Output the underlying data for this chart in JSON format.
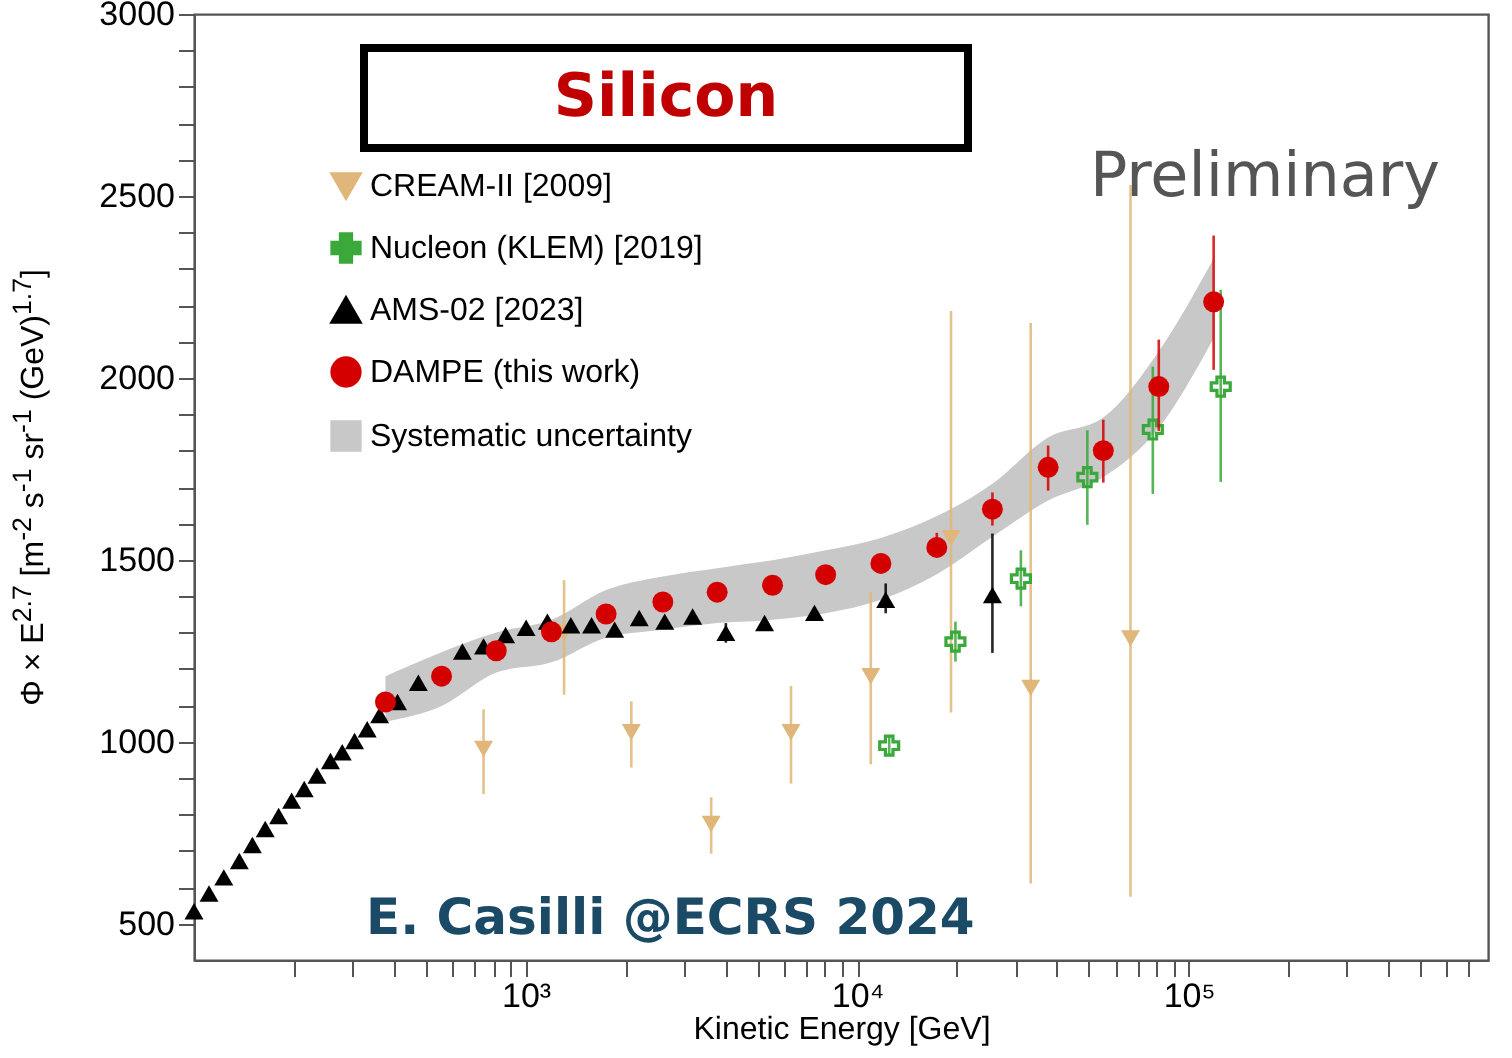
{
  "chart_data": {
    "type": "scatter",
    "title": "Silicon",
    "xlabel": "Kinetic Energy [GeV]",
    "ylabel": "Φ × E$^{2.7}$ [m$^{-2}$ s$^{-1}$ sr$^{-1}$ (GeV)$^{1.7}$]",
    "annotations": [
      "Preliminary",
      "E. Casilli @ECRS 2024",
      "Systematic uncertainty"
    ],
    "log": "x",
    "grid": false,
    "legend": "top left",
    "xlim": [
      100,
      800000
    ],
    "ylim": [
      400,
      3000
    ],
    "xticks": [
      {
        "value": 200,
        "label": null
      },
      {
        "value": 300,
        "label": null
      },
      {
        "value": 400,
        "label": null
      },
      {
        "value": 500,
        "label": null
      },
      {
        "value": 600,
        "label": null
      },
      {
        "value": 700,
        "label": null
      },
      {
        "value": 800,
        "label": null
      },
      {
        "value": 900,
        "label": null
      },
      {
        "value": 1000,
        "label": "10³"
      },
      {
        "value": 2000,
        "label": null
      },
      {
        "value": 3000,
        "label": null
      },
      {
        "value": 4000,
        "label": null
      },
      {
        "value": 5000,
        "label": null
      },
      {
        "value": 6000,
        "label": null
      },
      {
        "value": 7000,
        "label": null
      },
      {
        "value": 8000,
        "label": null
      },
      {
        "value": 9000,
        "label": null
      },
      {
        "value": 10000,
        "label": "10⁴"
      },
      {
        "value": 20000,
        "label": null
      },
      {
        "value": 30000,
        "label": null
      },
      {
        "value": 40000,
        "label": null
      },
      {
        "value": 50000,
        "label": null
      },
      {
        "value": 60000,
        "label": null
      },
      {
        "value": 70000,
        "label": null
      },
      {
        "value": 80000,
        "label": null
      },
      {
        "value": 90000,
        "label": null
      },
      {
        "value": 100000,
        "label": "10⁵"
      },
      {
        "value": 200000,
        "label": null
      },
      {
        "value": 300000,
        "label": null
      },
      {
        "value": 400000,
        "label": null
      },
      {
        "value": 500000,
        "label": null
      },
      {
        "value": 600000,
        "label": null
      },
      {
        "value": 700000,
        "label": null
      }
    ],
    "yticks": [
      500,
      {
        "value": 600,
        "label": null
      },
      {
        "value": 700,
        "label": null
      },
      {
        "value": 800,
        "label": null
      },
      {
        "value": 900,
        "label": null
      },
      1000,
      {
        "value": 1100,
        "label": null
      },
      {
        "value": 1200,
        "label": null
      },
      {
        "value": 1300,
        "label": null
      },
      {
        "value": 1400,
        "label": null
      },
      1500,
      {
        "value": 1600,
        "label": null
      },
      {
        "value": 1700,
        "label": null
      },
      {
        "value": 1800,
        "label": null
      },
      {
        "value": 1900,
        "label": null
      },
      2000,
      {
        "value": 2100,
        "label": null
      },
      {
        "value": 2200,
        "label": null
      },
      {
        "value": 2300,
        "label": null
      },
      {
        "value": 2400,
        "label": null
      },
      2500,
      {
        "value": 2600,
        "label": null
      },
      {
        "value": 2700,
        "label": null
      },
      {
        "value": 2800,
        "label": null
      },
      {
        "value": 2900,
        "label": null
      },
      3000
    ],
    "series": [
      {
        "name": "CREAM-II [2009]",
        "color": "#e0b67a",
        "marker": "triangle-down",
        "x": [
          747,
          1307,
          2085,
          3630,
          6320,
          11000,
          19200,
          33400,
          66800
        ],
        "values": [
          980,
          1299,
          1026,
          774,
          1026,
          1180,
          1559,
          1148,
          1284
        ],
        "errors": [
          [
            856,
            1089
          ],
          [
            1129,
            1444
          ],
          [
            929,
            1111
          ],
          [
            692,
            847
          ],
          [
            885,
            1153
          ],
          [
            938,
            1411
          ],
          [
            1080,
            2184
          ],
          [
            610,
            2151
          ],
          [
            574,
            2530
          ]
        ]
      },
      {
        "name": "Nucleon (KLEM) [2019]",
        "color": "#3aa83a",
        "marker": "cross",
        "x": [
          12500,
          19800,
          31200,
          49500,
          78000,
          125000
        ],
        "values": [
          989,
          1275,
          1448,
          1727,
          1858,
          1976
        ],
        "errors": [
          [
            965,
            1015
          ],
          [
            1220,
            1330
          ],
          [
            1372,
            1526
          ],
          [
            1596,
            1856
          ],
          [
            1681,
            2031
          ],
          [
            1714,
            2242
          ]
        ]
      },
      {
        "name": "AMS-02 [2023]",
        "color": "#000000",
        "marker": "triangle",
        "x": [
          100,
          111,
          123,
          137,
          150,
          164,
          180,
          197,
          215,
          235,
          258,
          280,
          305,
          333,
          363,
          411,
          475,
          645,
          747,
          871,
          1004,
          1164,
          1370,
          1582,
          1857,
          2203,
          2630,
          3192,
          4020,
          5260,
          7440,
          12200,
          25600
        ],
        "values": [
          534,
          583,
          627,
          672,
          716,
          760,
          796,
          838,
          870,
          907,
          947,
          971,
          1002,
          1034,
          1073,
          1109,
          1162,
          1248,
          1262,
          1293,
          1313,
          1330,
          1320,
          1320,
          1308,
          1340,
          1330,
          1344,
          1299,
          1326,
          1354,
          1390,
          1403
        ],
        "errors": [
          null,
          null,
          null,
          null,
          null,
          null,
          null,
          null,
          null,
          null,
          null,
          null,
          null,
          null,
          null,
          null,
          null,
          null,
          null,
          null,
          null,
          null,
          null,
          null,
          null,
          null,
          null,
          null,
          [
            1272,
            1326
          ],
          null,
          null,
          [
            1353,
            1435
          ],
          [
            1244,
            1572
          ]
        ]
      },
      {
        "name": "DAMPE (this work)",
        "color": "#d40000",
        "marker": "circle",
        "x": [
          378,
          558,
          816,
          1197,
          1750,
          2595,
          3785,
          5560,
          8040,
          11800,
          17400,
          25600,
          37700,
          55300,
          81300,
          119000
        ],
        "values": [
          1109,
          1180,
          1250,
          1302,
          1351,
          1384,
          1411,
          1430,
          1459,
          1490,
          1534,
          1639,
          1754,
          1800,
          1976,
          2209
        ],
        "errors": [
          null,
          null,
          null,
          null,
          null,
          null,
          null,
          null,
          null,
          null,
          [
            1508,
            1574
          ],
          [
            1594,
            1685
          ],
          [
            1690,
            1814
          ],
          [
            1712,
            1885
          ],
          [
            1854,
            2105
          ],
          [
            2022,
            2391
          ]
        ],
        "lower": [
          1055,
          1098,
          1190,
          1218,
          1286,
          1308,
          1326,
          1335,
          1353,
          1390,
          1460,
          1563,
          1663,
          1727,
          1863,
          2109
        ],
        "upper": [
          1180,
          1246,
          1300,
          1335,
          1417,
          1454,
          1477,
          1499,
          1526,
          1560,
          1620,
          1709,
          1836,
          1891,
          2073,
          2328
        ]
      }
    ]
  }
}
